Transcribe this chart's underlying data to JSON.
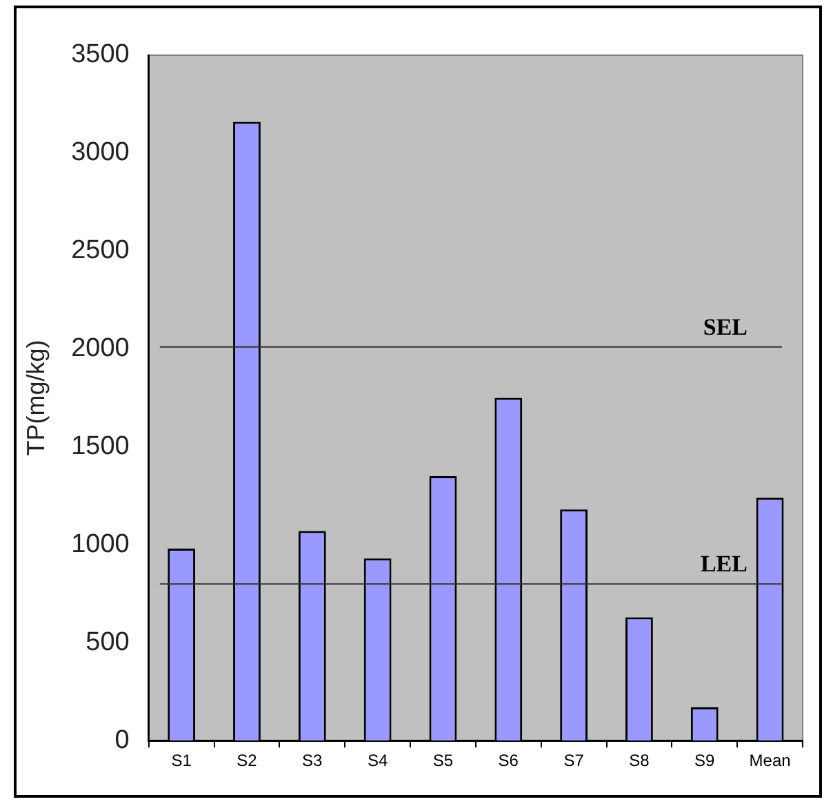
{
  "chart_data": {
    "type": "bar",
    "ylabel": "TP(mg/kg)",
    "categories": [
      "S1",
      "S2",
      "S3",
      "S4",
      "S5",
      "S6",
      "S7",
      "S8",
      "S9",
      "Mean"
    ],
    "values": [
      980,
      3160,
      1070,
      930,
      1350,
      1750,
      1180,
      630,
      170,
      1240
    ],
    "color": "#9999ff",
    "ylim": [
      0,
      3500
    ],
    "yticks": [
      0,
      500,
      1000,
      1500,
      2000,
      2500,
      3000,
      3500
    ],
    "ref_lines": [
      {
        "axis": "y",
        "value": 2010,
        "label": "SEL",
        "color": "#333333"
      },
      {
        "axis": "y",
        "value": 800,
        "label": "LEL",
        "color": "#333333"
      }
    ]
  }
}
